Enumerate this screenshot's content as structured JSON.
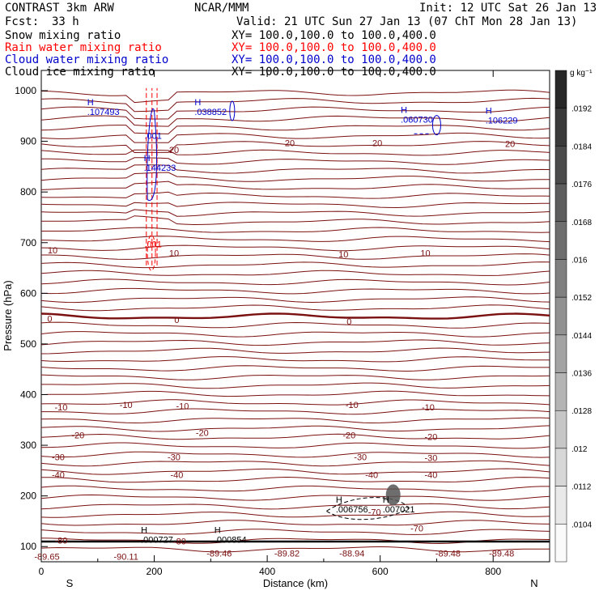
{
  "header": {
    "model": "CONTRAST  3km ARW",
    "org": "NCAR/MMM",
    "init": "Init: 12 UTC Sat 26 Jan 13",
    "fcst_label": "Fcst:",
    "fcst_value": "33 h",
    "valid": "Valid: 21 UTC Sun 27 Jan 13 (07 ChT Mon 28 Jan 13)",
    "fields": [
      {
        "name": "Snow mixing ratio",
        "color": "#000000",
        "xy": "XY= 100.0,100.0 to 100.0,400.0"
      },
      {
        "name": "Rain water mixing ratio",
        "color": "#ff0000",
        "xy": "XY= 100.0,100.0 to 100.0,400.0"
      },
      {
        "name": "Cloud water mixing ratio",
        "color": "#0000cc",
        "xy": "XY= 100.0,100.0 to 100.0,400.0"
      },
      {
        "name": "Cloud ice mixing ratio",
        "color": "#000000",
        "xy": "XY= 100.0,100.0 to 100.0,400.0"
      }
    ]
  },
  "chart_data": {
    "type": "cross-section contour",
    "xlabel": "Distance (km)",
    "ylabel": "Pressure (hPa)",
    "xlim": [
      0,
      900
    ],
    "ylim": [
      1040,
      70
    ],
    "x_ticks": [
      "0",
      "200",
      "400",
      "600",
      "800"
    ],
    "y_ticks": [
      "100",
      "200",
      "300",
      "400",
      "500",
      "600",
      "700",
      "800",
      "900",
      "1000"
    ],
    "x_ticks_values": [
      0,
      200,
      400,
      600,
      800
    ],
    "y_ticks_values": [
      100,
      200,
      300,
      400,
      500,
      600,
      700,
      800,
      900,
      1000
    ],
    "left_end_label": "S",
    "right_end_label": "N",
    "temperature_color": "#7a1010",
    "temperature_labels": [
      {
        "text": "-89.65",
        "x": 10,
        "p": 80
      },
      {
        "text": "-90.11",
        "x": 150,
        "p": 80
      },
      {
        "text": "-89.46",
        "x": 315,
        "p": 87
      },
      {
        "text": "-89.82",
        "x": 435,
        "p": 87
      },
      {
        "text": "-88.94",
        "x": 550,
        "p": 87
      },
      {
        "text": "-89.48",
        "x": 720,
        "p": 87
      },
      {
        "text": "-89.48",
        "x": 815,
        "p": 87
      },
      {
        "text": "-80",
        "x": 35,
        "p": 112
      },
      {
        "text": "-80",
        "x": 245,
        "p": 111
      },
      {
        "text": "-70",
        "x": 665,
        "p": 136
      },
      {
        "text": "-70",
        "x": 590,
        "p": 168
      },
      {
        "text": "-40",
        "x": 30,
        "p": 242
      },
      {
        "text": "-40",
        "x": 240,
        "p": 242
      },
      {
        "text": "-40",
        "x": 585,
        "p": 242
      },
      {
        "text": "-40",
        "x": 690,
        "p": 242
      },
      {
        "text": "-30",
        "x": 30,
        "p": 277
      },
      {
        "text": "-30",
        "x": 235,
        "p": 277
      },
      {
        "text": "-30",
        "x": 565,
        "p": 277
      },
      {
        "text": "-30",
        "x": 690,
        "p": 275
      },
      {
        "text": "-20",
        "x": 65,
        "p": 320
      },
      {
        "text": "-20",
        "x": 285,
        "p": 325
      },
      {
        "text": "-20",
        "x": 545,
        "p": 320
      },
      {
        "text": "-20",
        "x": 690,
        "p": 317
      },
      {
        "text": "-10",
        "x": 35,
        "p": 375
      },
      {
        "text": "-10",
        "x": 150,
        "p": 380
      },
      {
        "text": "-10",
        "x": 250,
        "p": 378
      },
      {
        "text": "-10",
        "x": 550,
        "p": 380
      },
      {
        "text": "-10",
        "x": 685,
        "p": 375
      },
      {
        "text": "0",
        "x": 15,
        "p": 550
      },
      {
        "text": "0",
        "x": 240,
        "p": 548
      },
      {
        "text": "0",
        "x": 545,
        "p": 545
      },
      {
        "text": "10",
        "x": 20,
        "p": 685
      },
      {
        "text": "10",
        "x": 235,
        "p": 680
      },
      {
        "text": "10",
        "x": 535,
        "p": 677
      },
      {
        "text": "10",
        "x": 680,
        "p": 680
      },
      {
        "text": "20",
        "x": 235,
        "p": 883
      },
      {
        "text": "20",
        "x": 440,
        "p": 897
      },
      {
        "text": "20",
        "x": 595,
        "p": 897
      },
      {
        "text": "20",
        "x": 830,
        "p": 895
      }
    ],
    "maxima": [
      {
        "mark": "H",
        "value": ".000727",
        "x": 185,
        "p": 120,
        "color": "#000000"
      },
      {
        "mark": "H",
        "value": ".000854",
        "x": 315,
        "p": 120,
        "color": "#000000"
      },
      {
        "mark": "H",
        "value": ".006756",
        "x": 530,
        "p": 180,
        "color": "#000000"
      },
      {
        "mark": "H",
        "value": ".007021",
        "x": 613,
        "p": 180,
        "color": "#000000"
      },
      {
        "mark": "H",
        "value": ".144233",
        "x": 190,
        "p": 855,
        "color": "#0000cc"
      },
      {
        "mark": "H",
        "value": ".107493",
        "x": 90,
        "p": 965,
        "color": "#0000cc"
      },
      {
        "mark": "H",
        "value": ".038852",
        "x": 280,
        "p": 965,
        "color": "#0000cc"
      },
      {
        "mark": "H",
        "value": ".060730",
        "x": 645,
        "p": 950,
        "color": "#0000cc"
      },
      {
        "mark": "H",
        "value": ".106229",
        "x": 795,
        "p": 948,
        "color": "#0000cc"
      }
    ],
    "contour_labels": [
      {
        "text": ".001",
        "x": 198,
        "p": 697,
        "color": "#ff0000"
      },
      {
        "text": ".001",
        "x": 198,
        "p": 911,
        "color": "#0000cc"
      }
    ],
    "colorbar": {
      "unit": "g kg⁻¹",
      "ticks": [
        ".0192",
        ".0184",
        ".0176",
        ".0168",
        ".016",
        ".0152",
        ".0144",
        ".0136",
        ".0128",
        ".012",
        ".0112",
        ".0104"
      ]
    }
  }
}
